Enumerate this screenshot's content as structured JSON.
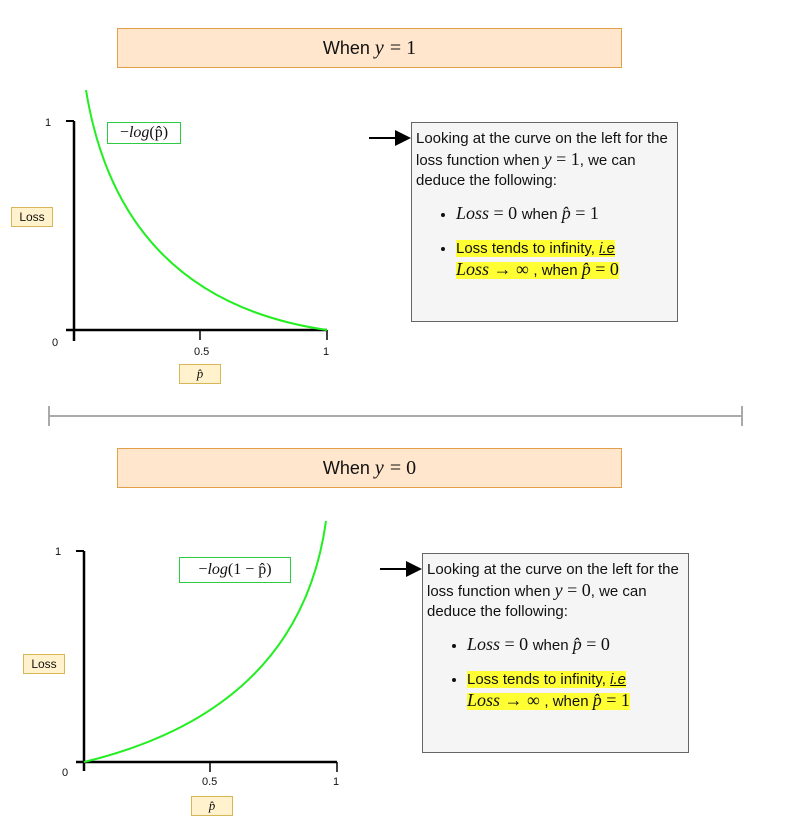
{
  "top": {
    "header_prefix": "When",
    "header_var": "y",
    "header_eq": "= 1",
    "formula_minus": "−",
    "formula_fn": "log",
    "formula_arg": "(p̂)",
    "ylabel": "Loss",
    "xlabel": "p̂",
    "y_ticks": [
      "1",
      "0"
    ],
    "x_ticks": [
      "0.5",
      "1"
    ],
    "note_intro_a": "Looking at the curve on the left for the loss function when ",
    "note_intro_var": "y",
    "note_intro_eq": " = 1",
    "note_intro_b": ", we can deduce the following:",
    "bullet1_lhs": "Loss",
    "bullet1_eq": " = 0 ",
    "bullet1_when": "when ",
    "bullet1_var": "p̂",
    "bullet1_val": " = 1",
    "bullet2_text": "Loss tends to infinity, ",
    "bullet2_ie": "i.e",
    "bullet2_lhs": "Loss",
    "bullet2_arrow": " → ∞ ",
    "bullet2_when": ", when ",
    "bullet2_var": "p̂",
    "bullet2_val": " = 0"
  },
  "bottom": {
    "header_prefix": "When",
    "header_var": "y",
    "header_eq": "= 0",
    "formula_minus": "−",
    "formula_fn": "log",
    "formula_arg": "(1 − p̂)",
    "ylabel": "Loss",
    "xlabel": "p̂",
    "y_ticks": [
      "1",
      "0"
    ],
    "x_ticks": [
      "0.5",
      "1"
    ],
    "note_intro_a": "Looking at the curve on the left for the loss function when ",
    "note_intro_var": "y",
    "note_intro_eq": " = 0",
    "note_intro_b": ", we can deduce the following:",
    "bullet1_lhs": "Loss",
    "bullet1_eq": " = 0 ",
    "bullet1_when": "when ",
    "bullet1_var": "p̂",
    "bullet1_val": " = 0",
    "bullet2_text": "Loss tends to infinity, ",
    "bullet2_ie": "i.e",
    "bullet2_lhs": "Loss",
    "bullet2_arrow": " → ∞ ",
    "bullet2_when": ", when ",
    "bullet2_var": "p̂",
    "bullet2_val": " = 1"
  },
  "colors": {
    "curve": "#22ee22",
    "header_fill": "#ffe6cc",
    "tag_fill": "#fff2cc",
    "highlight": "#ffff33",
    "divider": "#aaaaaa"
  }
}
